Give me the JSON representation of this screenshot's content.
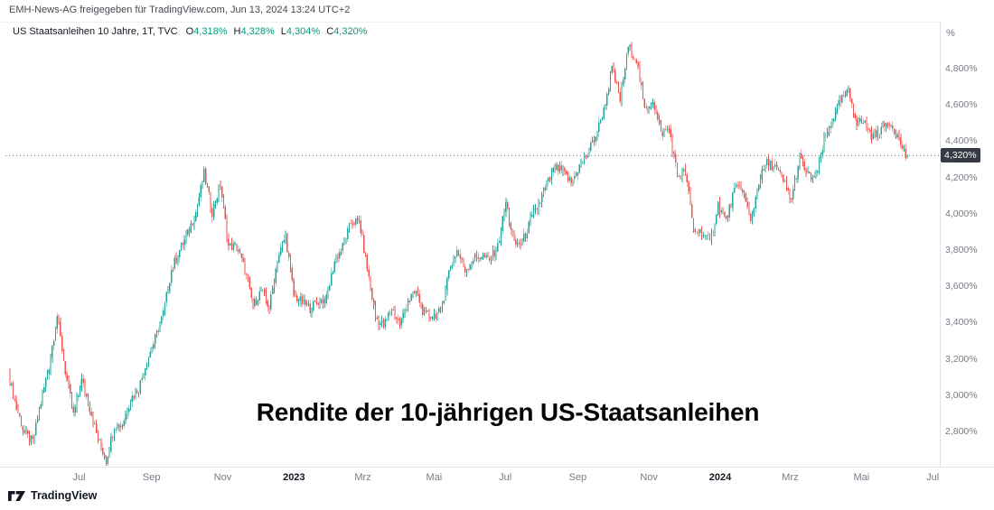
{
  "header": {
    "text": "EMH-News-AG freigegeben für TradingView.com, Jun 13, 2024 13:24 UTC+2"
  },
  "legend": {
    "symbol": "US Staatsanleihen 10 Jahre, 1T, TVC",
    "ohlc": [
      {
        "label": "O",
        "value": "4,318%"
      },
      {
        "label": "H",
        "value": "4,328%"
      },
      {
        "label": "L",
        "value": "4,304%"
      },
      {
        "label": "C",
        "value": "4,320%"
      }
    ]
  },
  "title": "Rendite der 10-jährigen US-Staatsanleihen",
  "footer": {
    "brand": "TradingView"
  },
  "axes": {
    "y_unit": "%",
    "y_labels": [
      {
        "text": "4,800%",
        "value": 4.8
      },
      {
        "text": "4,600%",
        "value": 4.6
      },
      {
        "text": "4,400%",
        "value": 4.4
      },
      {
        "text": "4,200%",
        "value": 4.2
      },
      {
        "text": "4,000%",
        "value": 4.0
      },
      {
        "text": "3,800%",
        "value": 3.8
      },
      {
        "text": "3,600%",
        "value": 3.6
      },
      {
        "text": "3,400%",
        "value": 3.4
      },
      {
        "text": "3,200%",
        "value": 3.2
      },
      {
        "text": "3,000%",
        "value": 3.0
      },
      {
        "text": "2,800%",
        "value": 2.8
      }
    ],
    "x_labels": [
      {
        "text": "Jul",
        "week": 8.57
      },
      {
        "text": "Sep",
        "week": 17.43
      },
      {
        "text": "Nov",
        "week": 26.14
      },
      {
        "text": "2023",
        "week": 34.86,
        "year": true
      },
      {
        "text": "Mrz",
        "week": 43.29
      },
      {
        "text": "Mai",
        "week": 52.0
      },
      {
        "text": "Jul",
        "week": 60.71
      },
      {
        "text": "Sep",
        "week": 69.57
      },
      {
        "text": "Nov",
        "week": 78.29
      },
      {
        "text": "2024",
        "week": 87.0,
        "year": true
      },
      {
        "text": "Mrz",
        "week": 95.57
      },
      {
        "text": "Mai",
        "week": 104.29
      },
      {
        "text": "Jul",
        "week": 113.0
      }
    ],
    "price_tag": {
      "text": "4,320%",
      "value": 4.32
    }
  },
  "chart_data": {
    "type": "candlestick",
    "title": "Rendite der 10-jährigen US-Staatsanleihen",
    "symbol": "US Staatsanleihen 10 Jahre",
    "interval": "1T",
    "exchange": "TVC",
    "unit": "yield_percent",
    "x_range": [
      "2022-05",
      "2024-07"
    ],
    "y_axis": {
      "visible_min": 2.6,
      "visible_max": 5.0,
      "tick_step": 0.2
    },
    "last": {
      "open": 4.318,
      "high": 4.328,
      "low": 4.304,
      "close": 4.32
    },
    "last_price": 4.32,
    "weekly_start": "2022-05-02",
    "weekly_closes": [
      3.12,
      2.93,
      2.79,
      2.74,
      2.96,
      3.16,
      3.44,
      3.13,
      2.89,
      3.08,
      2.93,
      2.76,
      2.64,
      2.83,
      2.84,
      2.98,
      3.04,
      3.19,
      3.31,
      3.45,
      3.69,
      3.8,
      3.89,
      4.01,
      4.22,
      4.01,
      4.16,
      3.82,
      3.82,
      3.69,
      3.49,
      3.58,
      3.48,
      3.75,
      3.88,
      3.55,
      3.51,
      3.48,
      3.52,
      3.53,
      3.74,
      3.82,
      3.95,
      3.96,
      3.7,
      3.43,
      3.38,
      3.48,
      3.39,
      3.52,
      3.57,
      3.44,
      3.44,
      3.46,
      3.68,
      3.8,
      3.69,
      3.75,
      3.77,
      3.74,
      3.82,
      4.06,
      3.83,
      3.84,
      3.96,
      4.05,
      4.16,
      4.25,
      4.23,
      4.17,
      4.26,
      4.33,
      4.43,
      4.57,
      4.8,
      4.63,
      4.92,
      4.85,
      4.57,
      4.63,
      4.44,
      4.47,
      4.21,
      4.23,
      3.91,
      3.9,
      3.84,
      4.05,
      3.96,
      4.13,
      4.14,
      3.95,
      4.18,
      4.28,
      4.26,
      4.18,
      4.08,
      4.31,
      4.21,
      4.2,
      4.4,
      4.52,
      4.62,
      4.67,
      4.51,
      4.5,
      4.42,
      4.47,
      4.51,
      4.43,
      4.32
    ],
    "colors": {
      "up": "#26a69a",
      "down": "#ef5350",
      "legend_value": "#089981"
    }
  }
}
